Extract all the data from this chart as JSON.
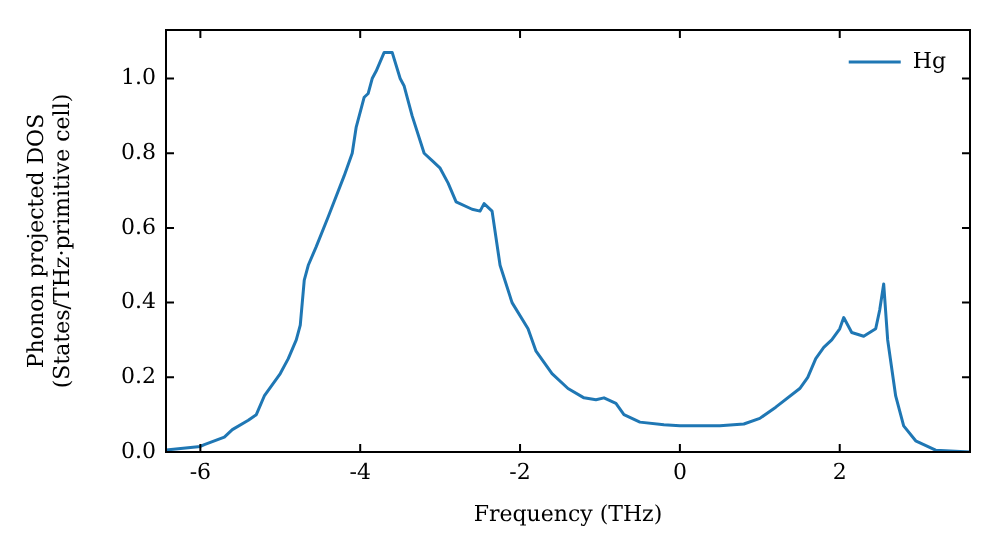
{
  "chart_data": {
    "type": "line",
    "xlabel": "Frequency (THz)",
    "ylabel": "Phonon projected DOS\n(States/THz·primitive cell)",
    "xlim": [
      -6.43,
      3.63
    ],
    "xticks": [
      -6,
      -4,
      -2,
      0,
      2
    ],
    "ylim": [
      0,
      1.13
    ],
    "yticks": [
      {
        "value": 0,
        "label": "0.0"
      },
      0.2,
      0.4,
      0.6,
      0.8,
      {
        "value": 1,
        "label": "1.0"
      }
    ],
    "grid": false,
    "legend": "top right",
    "marker": "none",
    "line_style": "solid",
    "series": [
      {
        "name": "Hg",
        "color": "#1f77b4",
        "x": [
          -6.43,
          -6.0,
          -5.95,
          -5.7,
          -5.6,
          -5.4,
          -5.3,
          -5.2,
          -5.0,
          -4.9,
          -4.8,
          -4.75,
          -4.7,
          -4.65,
          -4.55,
          -4.4,
          -4.2,
          -4.1,
          -4.05,
          -3.95,
          -3.9,
          -3.85,
          -3.8,
          -3.7,
          -3.6,
          -3.5,
          -3.45,
          -3.35,
          -3.2,
          -3.1,
          -3.0,
          -2.9,
          -2.8,
          -2.6,
          -2.5,
          -2.45,
          -2.35,
          -2.25,
          -2.1,
          -1.9,
          -1.8,
          -1.6,
          -1.4,
          -1.2,
          -1.05,
          -0.95,
          -0.8,
          -0.7,
          -0.5,
          -0.2,
          0,
          0.5,
          0.8,
          1.0,
          1.2,
          1.5,
          1.6,
          1.7,
          1.8,
          1.9,
          2.0,
          2.05,
          2.15,
          2.3,
          2.45,
          2.5,
          2.55,
          2.6,
          2.7,
          2.8,
          2.95,
          3.2,
          3.63
        ],
        "values": [
          0.005,
          0.015,
          0.02,
          0.04,
          0.06,
          0.085,
          0.1,
          0.15,
          0.21,
          0.25,
          0.3,
          0.34,
          0.46,
          0.5,
          0.55,
          0.63,
          0.74,
          0.8,
          0.87,
          0.95,
          0.96,
          1.0,
          1.02,
          1.07,
          1.07,
          1.0,
          0.98,
          0.9,
          0.8,
          0.78,
          0.76,
          0.72,
          0.67,
          0.65,
          0.645,
          0.665,
          0.645,
          0.5,
          0.4,
          0.33,
          0.27,
          0.21,
          0.17,
          0.145,
          0.14,
          0.145,
          0.13,
          0.1,
          0.08,
          0.073,
          0.07,
          0.07,
          0.075,
          0.09,
          0.12,
          0.17,
          0.2,
          0.25,
          0.28,
          0.3,
          0.33,
          0.36,
          0.32,
          0.31,
          0.33,
          0.38,
          0.45,
          0.3,
          0.15,
          0.07,
          0.03,
          0.005,
          0
        ]
      }
    ]
  }
}
